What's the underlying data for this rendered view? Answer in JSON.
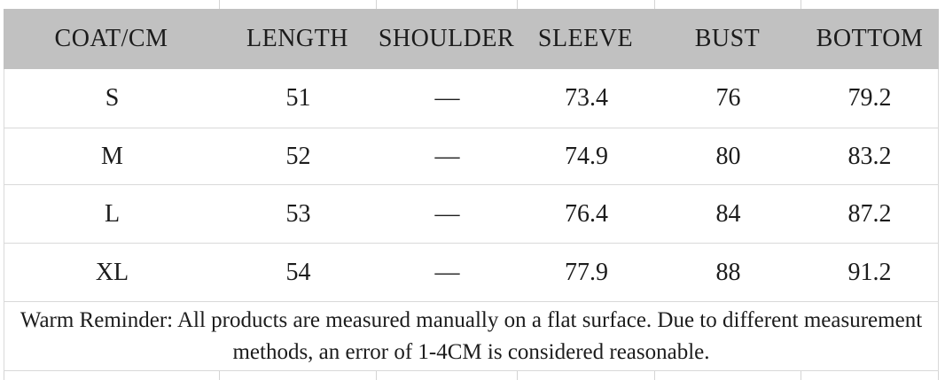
{
  "chart_data": {
    "type": "table",
    "columns": [
      "COAT/CM",
      "LENGTH",
      "SHOULDER",
      "SLEEVE",
      "BUST",
      "BOTTOM"
    ],
    "rows": [
      [
        "S",
        "51",
        "—",
        "73.4",
        "76",
        "79.2"
      ],
      [
        "M",
        "52",
        "—",
        "74.9",
        "80",
        "83.2"
      ],
      [
        "L",
        "53",
        "—",
        "76.4",
        "84",
        "87.2"
      ],
      [
        "XL",
        "54",
        "—",
        "77.9",
        "88",
        "91.2"
      ]
    ],
    "unit": "CM",
    "note_line1": "Warm Reminder: All products are measured manually on a flat surface. Due to different measurement",
    "note_line2": "methods, an error of 1-4CM is considered reasonable."
  },
  "colors": {
    "header_bg": "#c1c1c1",
    "grid_line": "#d9d9d9",
    "grid_line_faint": "#d4d4d4",
    "text": "#1c1c1c",
    "background": "#ffffff"
  }
}
